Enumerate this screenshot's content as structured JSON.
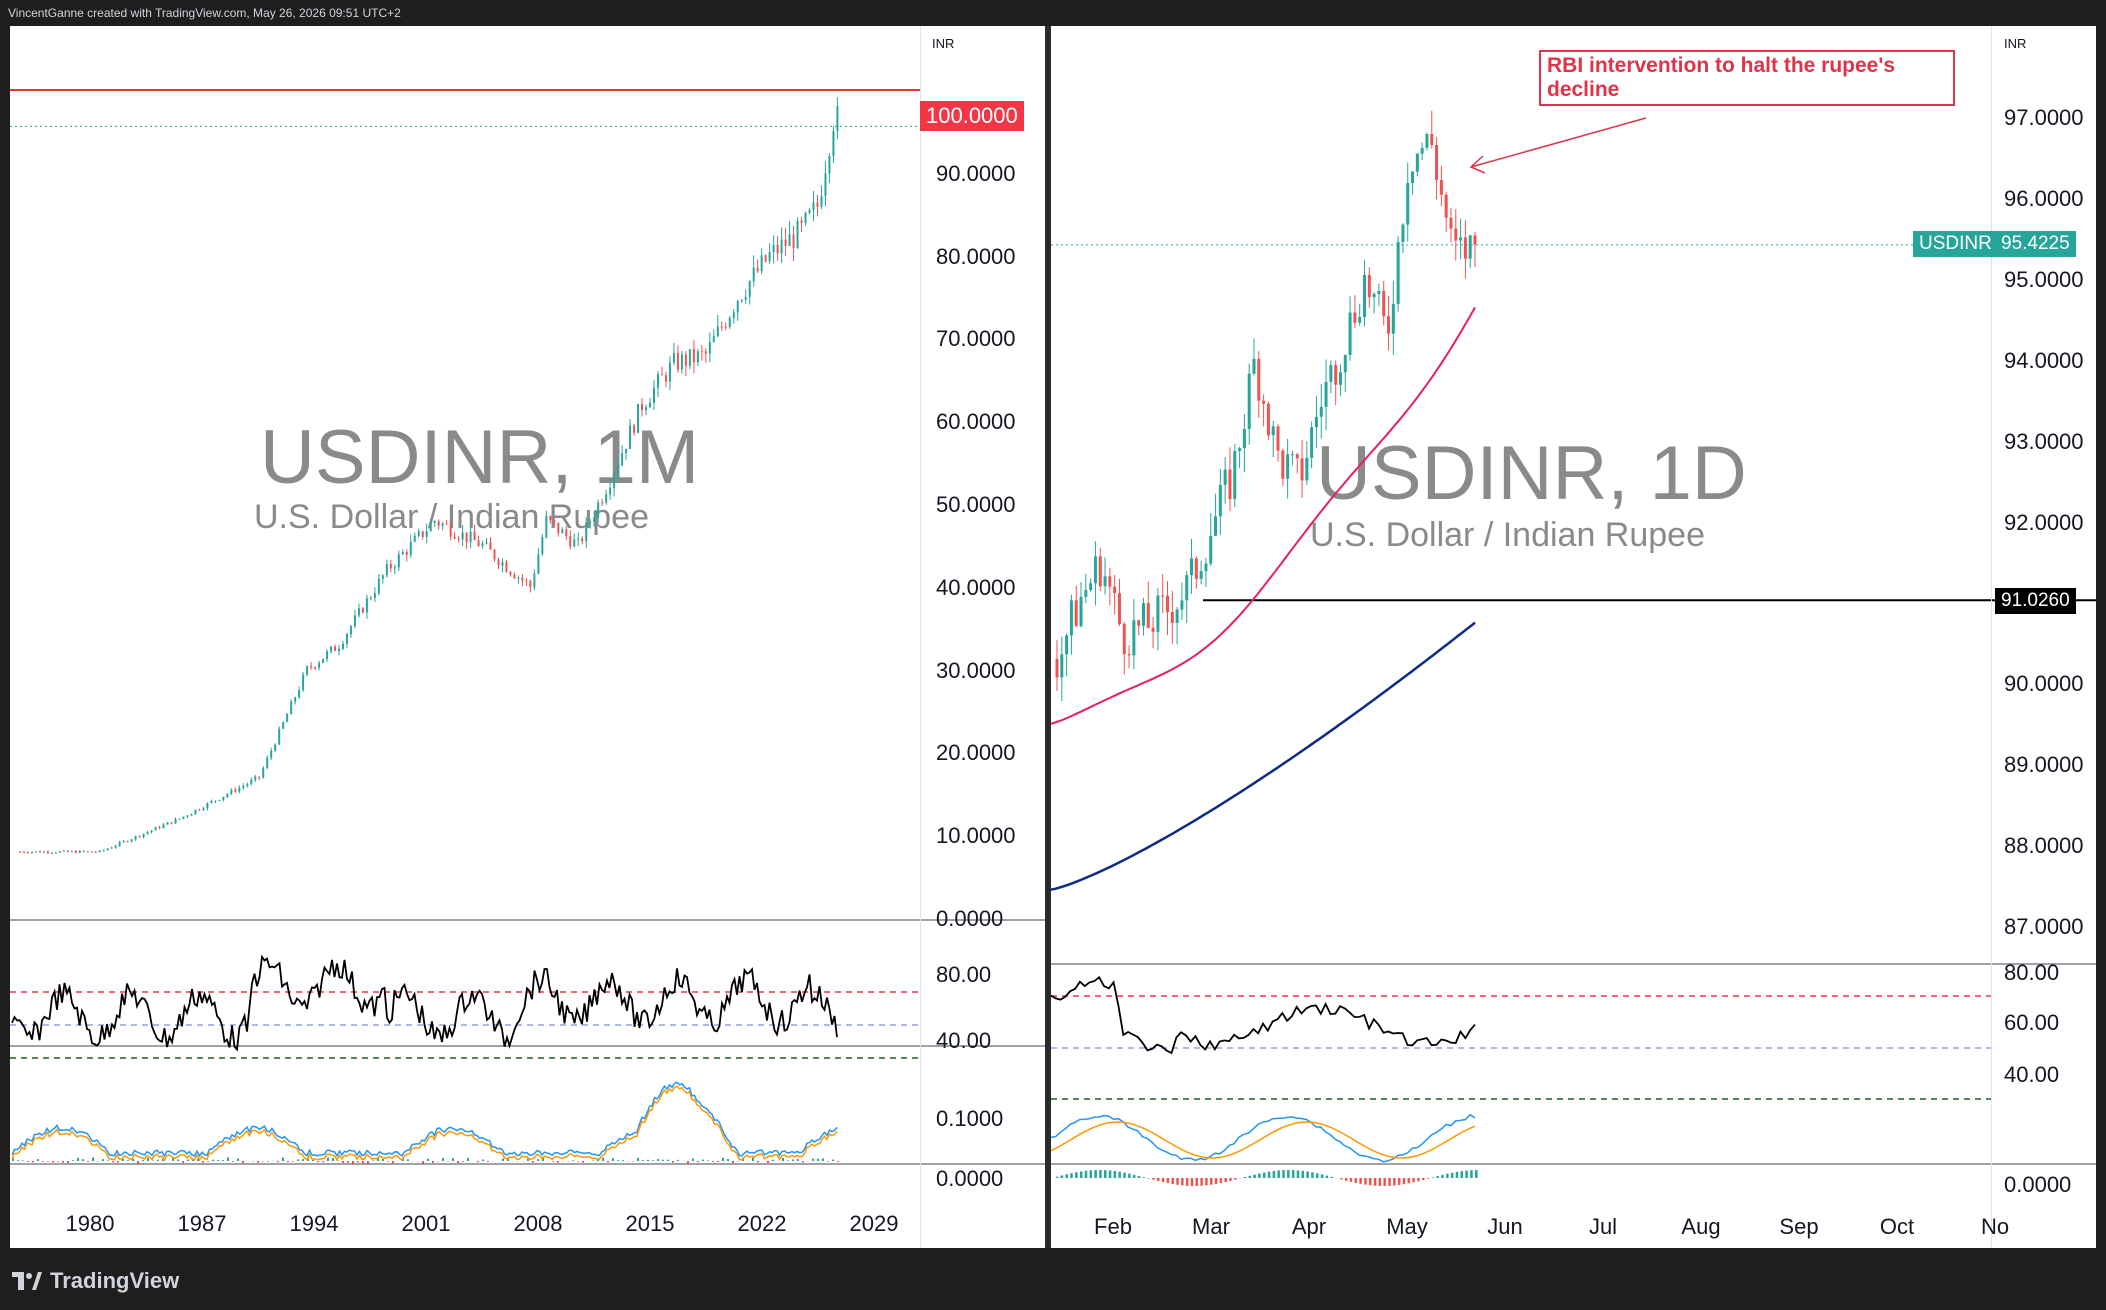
{
  "header": {
    "credit": "VincentGanne created with TradingView.com, May 26, 2026 09:51 UTC+2"
  },
  "footer": {
    "brand": "TradingView"
  },
  "left": {
    "symbol": "USDINR, 1M",
    "name": "U.S. Dollar / Indian Rupee",
    "currency": "INR",
    "price_tag": "100.0000",
    "y_ticks": [
      "100.0000",
      "90.0000",
      "80.0000",
      "70.0000",
      "60.0000",
      "50.0000",
      "40.0000",
      "30.0000",
      "20.0000",
      "10.0000",
      "0.0000"
    ],
    "rsi_ticks": [
      "80.00",
      "40.00"
    ],
    "macd_ticks": [
      "0.1000",
      "0.0000"
    ],
    "x_ticks": [
      "1980",
      "1987",
      "1994",
      "2001",
      "2008",
      "2015",
      "2022",
      "2029"
    ]
  },
  "right": {
    "symbol": "USDINR, 1D",
    "name": "U.S. Dollar / Indian Rupee",
    "currency": "INR",
    "last_label": "USDINR",
    "last_price": "95.4225",
    "level_price": "91.0260",
    "annotation": "RBI intervention to halt the rupee's decline",
    "y_ticks": [
      "97.0000",
      "96.0000",
      "95.0000",
      "94.0000",
      "93.0000",
      "92.0000",
      "91.0000",
      "90.0000",
      "89.0000",
      "88.0000",
      "87.0000"
    ],
    "rsi_ticks": [
      "80.00",
      "60.00",
      "40.00"
    ],
    "macd_ticks": [
      "0.0000"
    ],
    "x_ticks": [
      "Feb",
      "Mar",
      "Apr",
      "May",
      "Jun",
      "Jul",
      "Aug",
      "Sep",
      "Oct",
      "No"
    ]
  },
  "colors": {
    "up": "#26a69a",
    "down": "#ef5350",
    "red_line": "#e53935",
    "ema_short": "#e91e63",
    "ema_long": "#0d2b8a"
  },
  "chart_data": [
    {
      "type": "line",
      "title": "USDINR, 1M",
      "ylim": [
        0,
        110
      ],
      "x": [
        1975,
        1980,
        1985,
        1990,
        1993,
        1995,
        1998,
        2001,
        2004,
        2007,
        2008,
        2010,
        2012,
        2014,
        2016,
        2018,
        2020,
        2022,
        2024,
        2025,
        2026
      ],
      "series": [
        {
          "name": "USDINR",
          "values": [
            8.0,
            8.0,
            12.0,
            17.0,
            30.0,
            33.0,
            42.0,
            48.0,
            45.0,
            40.0,
            48.0,
            45.0,
            53.0,
            62.0,
            67.0,
            68.0,
            75.0,
            80.0,
            83.0,
            86.0,
            96.5
          ]
        }
      ]
    },
    {
      "type": "line",
      "title": "USDINR, 1D",
      "ylim": [
        86.5,
        97.5
      ],
      "x": [
        "Jan 20",
        "Jan 27",
        "Feb 3",
        "Feb 10",
        "Feb 17",
        "Feb 24",
        "Mar 3",
        "Mar 10",
        "Mar 17",
        "Mar 24",
        "Mar 31",
        "Apr 7",
        "Apr 14",
        "Apr 21",
        "Apr 28",
        "May 5",
        "May 12",
        "May 19",
        "May 22",
        "May 26"
      ],
      "series": [
        {
          "name": "USDINR",
          "values": [
            90.3,
            91.0,
            91.5,
            90.6,
            90.7,
            90.9,
            91.2,
            91.9,
            92.6,
            94.0,
            92.8,
            92.5,
            93.5,
            94.2,
            95.0,
            94.3,
            96.5,
            96.7,
            95.3,
            95.4
          ]
        }
      ]
    }
  ]
}
